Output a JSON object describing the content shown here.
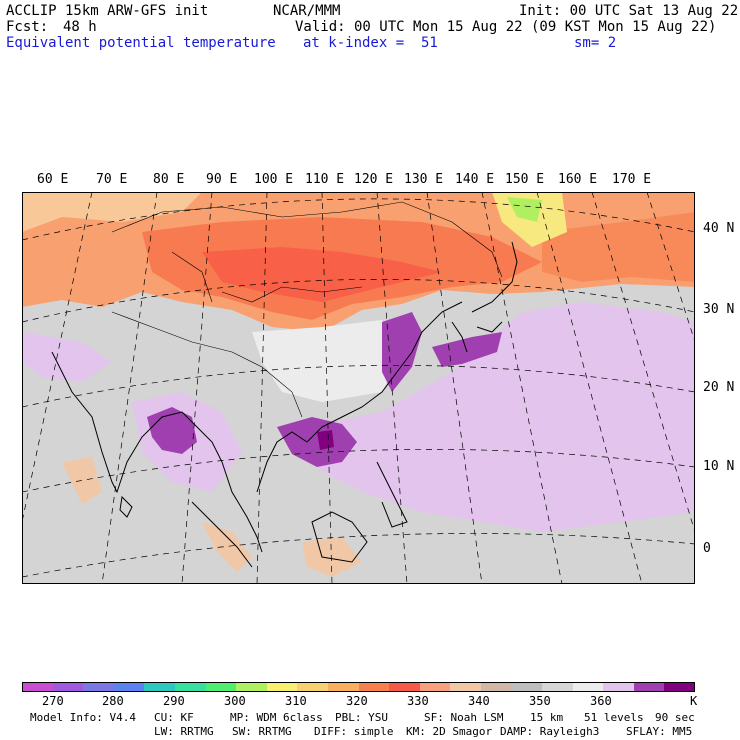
{
  "header": {
    "model": "ACCLIP 15km ARW-GFS init",
    "org": "NCAR/MMM",
    "init": "Init: 00 UTC Sat 13 Aug 22",
    "fcst_label": "Fcst:",
    "fcst_value": "48 h",
    "valid": "Valid: 00 UTC Mon 15 Aug 22 (09 KST Mon 15 Aug 22)",
    "field": "Equivalent potential temperature",
    "level": "at k-index =  51",
    "smooth": "sm= 2"
  },
  "map": {
    "lon_labels": [
      "60 E",
      "70 E",
      "80 E",
      "90 E",
      "100 E",
      "110 E",
      "120 E",
      "130 E",
      "140 E",
      "150 E",
      "160 E",
      "170 E"
    ],
    "lat_labels": [
      "40 N",
      "30 N",
      "20 N",
      "10 N",
      "0"
    ]
  },
  "colorbar": {
    "colors": [
      "#c84fd0",
      "#a05ae0",
      "#7b78e6",
      "#5a82f0",
      "#2ec8c0",
      "#38e0a0",
      "#50ee70",
      "#b0f060",
      "#f8f070",
      "#f8d070",
      "#f8b060",
      "#f88050",
      "#f85a48",
      "#f8a080",
      "#f0c8a8",
      "#d0b8a8",
      "#bebebe",
      "#d6d6d6",
      "#ececec",
      "#e2c4ec",
      "#a040b0",
      "#800080"
    ],
    "labels": [
      "270",
      "280",
      "290",
      "300",
      "310",
      "320",
      "330",
      "340",
      "350",
      "360",
      "K"
    ]
  },
  "model_info": {
    "line1": [
      "Model Info: V4.4",
      "CU: KF",
      "MP: WDM 6class",
      "PBL: YSU",
      "SF: Noah LSM",
      "15 km",
      "51 levels",
      "90 sec"
    ],
    "line2": [
      "LW: RRTMG",
      "SW: RRTMG",
      "DIFF: simple",
      "KM: 2D Smagor",
      "DAMP: Rayleigh3",
      "SFLAY: MM5"
    ]
  }
}
